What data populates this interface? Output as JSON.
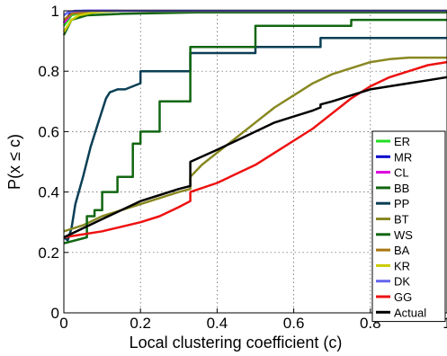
{
  "chart_data": {
    "type": "line",
    "title": "",
    "xlabel": "Local clustering coefficient (c)",
    "ylabel": "P(x ≤ c)",
    "xlim": [
      0,
      1
    ],
    "ylim": [
      0,
      1
    ],
    "grid": true,
    "legend_position": "right",
    "x_ticks": [
      "0",
      "0.2",
      "0.4",
      "0.6",
      "0.8",
      "1"
    ],
    "y_ticks": [
      "0",
      "0.2",
      "0.4",
      "0.6",
      "0.8",
      "1"
    ],
    "series": [
      {
        "name": "ER",
        "color": "#22dd22",
        "points": [
          [
            0,
            0.95
          ],
          [
            0.02,
            0.985
          ],
          [
            0.05,
            0.995
          ],
          [
            0.1,
            1
          ],
          [
            1,
            1
          ]
        ]
      },
      {
        "name": "MR",
        "color": "#0000cc",
        "points": [
          [
            0,
            0.96
          ],
          [
            0.015,
            0.99
          ],
          [
            0.05,
            1
          ],
          [
            1,
            1
          ]
        ]
      },
      {
        "name": "CL",
        "color": "#dd00dd",
        "points": [
          [
            0,
            0.96
          ],
          [
            0.02,
            0.99
          ],
          [
            0.06,
            1
          ],
          [
            1,
            1
          ]
        ]
      },
      {
        "name": "BB",
        "color": "#116611",
        "points": [
          [
            0,
            0.92
          ],
          [
            0.02,
            0.97
          ],
          [
            0.06,
            0.985
          ],
          [
            0.15,
            0.99
          ],
          [
            0.35,
            0.995
          ],
          [
            1,
            0.995
          ]
        ]
      },
      {
        "name": "PP",
        "color": "#0a3f55",
        "points": [
          [
            0,
            0.25
          ],
          [
            0.01,
            0.24
          ],
          [
            0.02,
            0.28
          ],
          [
            0.03,
            0.36
          ],
          [
            0.05,
            0.45
          ],
          [
            0.07,
            0.55
          ],
          [
            0.09,
            0.63
          ],
          [
            0.1,
            0.67
          ],
          [
            0.11,
            0.71
          ],
          [
            0.12,
            0.73
          ],
          [
            0.14,
            0.74
          ],
          [
            0.16,
            0.74
          ],
          [
            0.18,
            0.75
          ],
          [
            0.2,
            0.76
          ],
          [
            0.2,
            0.8
          ],
          [
            0.33,
            0.8
          ],
          [
            0.33,
            0.86
          ],
          [
            0.5,
            0.86
          ],
          [
            0.5,
            0.88
          ],
          [
            0.67,
            0.88
          ],
          [
            0.67,
            0.91
          ],
          [
            1,
            0.91
          ]
        ]
      },
      {
        "name": "BT",
        "color": "#888822",
        "points": [
          [
            0,
            0.27
          ],
          [
            0.05,
            0.29
          ],
          [
            0.1,
            0.32
          ],
          [
            0.15,
            0.34
          ],
          [
            0.2,
            0.36
          ],
          [
            0.25,
            0.38
          ],
          [
            0.3,
            0.4
          ],
          [
            0.33,
            0.41
          ],
          [
            0.33,
            0.45
          ],
          [
            0.36,
            0.49
          ],
          [
            0.4,
            0.53
          ],
          [
            0.45,
            0.58
          ],
          [
            0.5,
            0.63
          ],
          [
            0.55,
            0.68
          ],
          [
            0.6,
            0.72
          ],
          [
            0.65,
            0.76
          ],
          [
            0.7,
            0.79
          ],
          [
            0.75,
            0.81
          ],
          [
            0.8,
            0.83
          ],
          [
            0.85,
            0.84
          ],
          [
            0.9,
            0.845
          ],
          [
            1,
            0.845
          ]
        ]
      },
      {
        "name": "WS",
        "color": "#116611",
        "points": [
          [
            0,
            0.23
          ],
          [
            0.06,
            0.25
          ],
          [
            0.06,
            0.32
          ],
          [
            0.08,
            0.32
          ],
          [
            0.08,
            0.34
          ],
          [
            0.1,
            0.34
          ],
          [
            0.1,
            0.4
          ],
          [
            0.14,
            0.4
          ],
          [
            0.14,
            0.45
          ],
          [
            0.18,
            0.45
          ],
          [
            0.18,
            0.56
          ],
          [
            0.2,
            0.56
          ],
          [
            0.2,
            0.6
          ],
          [
            0.25,
            0.6
          ],
          [
            0.25,
            0.7
          ],
          [
            0.33,
            0.7
          ],
          [
            0.33,
            0.88
          ],
          [
            0.5,
            0.88
          ],
          [
            0.5,
            0.95
          ],
          [
            0.75,
            0.95
          ],
          [
            0.75,
            0.97
          ],
          [
            1,
            0.97
          ]
        ]
      },
      {
        "name": "BA",
        "color": "#aa7711",
        "points": [
          [
            0,
            0.97
          ],
          [
            0.02,
            0.99
          ],
          [
            0.06,
            0.995
          ],
          [
            0.12,
            1
          ],
          [
            1,
            1
          ]
        ]
      },
      {
        "name": "KR",
        "color": "#cccc00",
        "points": [
          [
            0,
            0.93
          ],
          [
            0.01,
            0.95
          ],
          [
            0.02,
            0.97
          ],
          [
            0.04,
            0.985
          ],
          [
            0.08,
            0.995
          ],
          [
            0.15,
            1
          ],
          [
            1,
            1
          ]
        ]
      },
      {
        "name": "DK",
        "color": "#6666ee",
        "points": [
          [
            0,
            0.985
          ],
          [
            0.01,
            0.995
          ],
          [
            0.03,
            1
          ],
          [
            1,
            1
          ]
        ]
      },
      {
        "name": "GG",
        "color": "#ee1111",
        "points": [
          [
            0,
            0.25
          ],
          [
            0.1,
            0.27
          ],
          [
            0.2,
            0.3
          ],
          [
            0.25,
            0.32
          ],
          [
            0.3,
            0.35
          ],
          [
            0.33,
            0.37
          ],
          [
            0.33,
            0.4
          ],
          [
            0.4,
            0.43
          ],
          [
            0.5,
            0.49
          ],
          [
            0.55,
            0.53
          ],
          [
            0.6,
            0.57
          ],
          [
            0.65,
            0.61
          ],
          [
            0.7,
            0.66
          ],
          [
            0.75,
            0.71
          ],
          [
            0.8,
            0.75
          ],
          [
            0.85,
            0.78
          ],
          [
            0.9,
            0.8
          ],
          [
            0.95,
            0.82
          ],
          [
            1,
            0.83
          ]
        ]
      },
      {
        "name": "Actual",
        "color": "#000000",
        "points": [
          [
            0,
            0.25
          ],
          [
            0.05,
            0.28
          ],
          [
            0.1,
            0.31
          ],
          [
            0.15,
            0.34
          ],
          [
            0.2,
            0.37
          ],
          [
            0.25,
            0.39
          ],
          [
            0.3,
            0.41
          ],
          [
            0.33,
            0.42
          ],
          [
            0.33,
            0.5
          ],
          [
            0.4,
            0.54
          ],
          [
            0.45,
            0.57
          ],
          [
            0.5,
            0.6
          ],
          [
            0.55,
            0.63
          ],
          [
            0.6,
            0.65
          ],
          [
            0.65,
            0.67
          ],
          [
            0.67,
            0.68
          ],
          [
            0.67,
            0.69
          ],
          [
            0.7,
            0.7
          ],
          [
            0.75,
            0.72
          ],
          [
            0.8,
            0.74
          ],
          [
            0.85,
            0.75
          ],
          [
            0.9,
            0.76
          ],
          [
            0.95,
            0.77
          ],
          [
            1,
            0.78
          ]
        ]
      }
    ]
  }
}
